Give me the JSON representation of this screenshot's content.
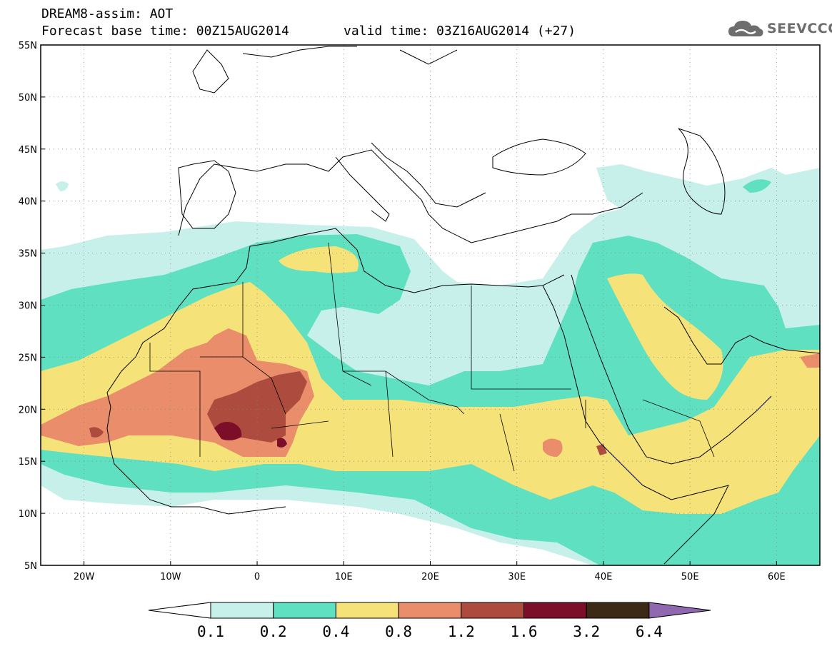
{
  "header": {
    "title_line1": "DREAM8-assim: AOT",
    "title_line2": "Forecast base time: 00Z15AUG2014",
    "valid_time": "valid time: 03Z16AUG2014 (+27)",
    "logo_text": "SEEVCCC",
    "logo_icon": "cloud-icon"
  },
  "map": {
    "extent": {
      "lon": [
        -25,
        65
      ],
      "lat": [
        5,
        55
      ]
    },
    "y_ticks": [
      {
        "value": 55,
        "label": "55N"
      },
      {
        "value": 50,
        "label": "50N"
      },
      {
        "value": 45,
        "label": "45N"
      },
      {
        "value": 40,
        "label": "40N"
      },
      {
        "value": 35,
        "label": "35N"
      },
      {
        "value": 30,
        "label": "30N"
      },
      {
        "value": 25,
        "label": "25N"
      },
      {
        "value": 20,
        "label": "20N"
      },
      {
        "value": 15,
        "label": "15N"
      },
      {
        "value": 10,
        "label": "10N"
      },
      {
        "value": 5,
        "label": "5N"
      }
    ],
    "x_ticks": [
      {
        "value": -20,
        "label": "20W"
      },
      {
        "value": -10,
        "label": "10W"
      },
      {
        "value": 0,
        "label": "0"
      },
      {
        "value": 10,
        "label": "10E"
      },
      {
        "value": 20,
        "label": "20E"
      },
      {
        "value": 30,
        "label": "30E"
      },
      {
        "value": 40,
        "label": "40E"
      },
      {
        "value": 50,
        "label": "50E"
      },
      {
        "value": 60,
        "label": "60E"
      }
    ],
    "grid": "dotted"
  },
  "colorbar": {
    "labels": [
      "0.1",
      "0.2",
      "0.4",
      "0.8",
      "1.2",
      "1.6",
      "3.2",
      "6.4"
    ],
    "colors": {
      "under": "#ffffff",
      "c1": "#c8f0ea",
      "c2": "#5fe0c0",
      "c3": "#f5e37a",
      "c4": "#e98d6a",
      "c5": "#ad4b3e",
      "c6": "#7c0e2a",
      "c7": "#3d2a16",
      "over": "#8f68b0"
    }
  }
}
